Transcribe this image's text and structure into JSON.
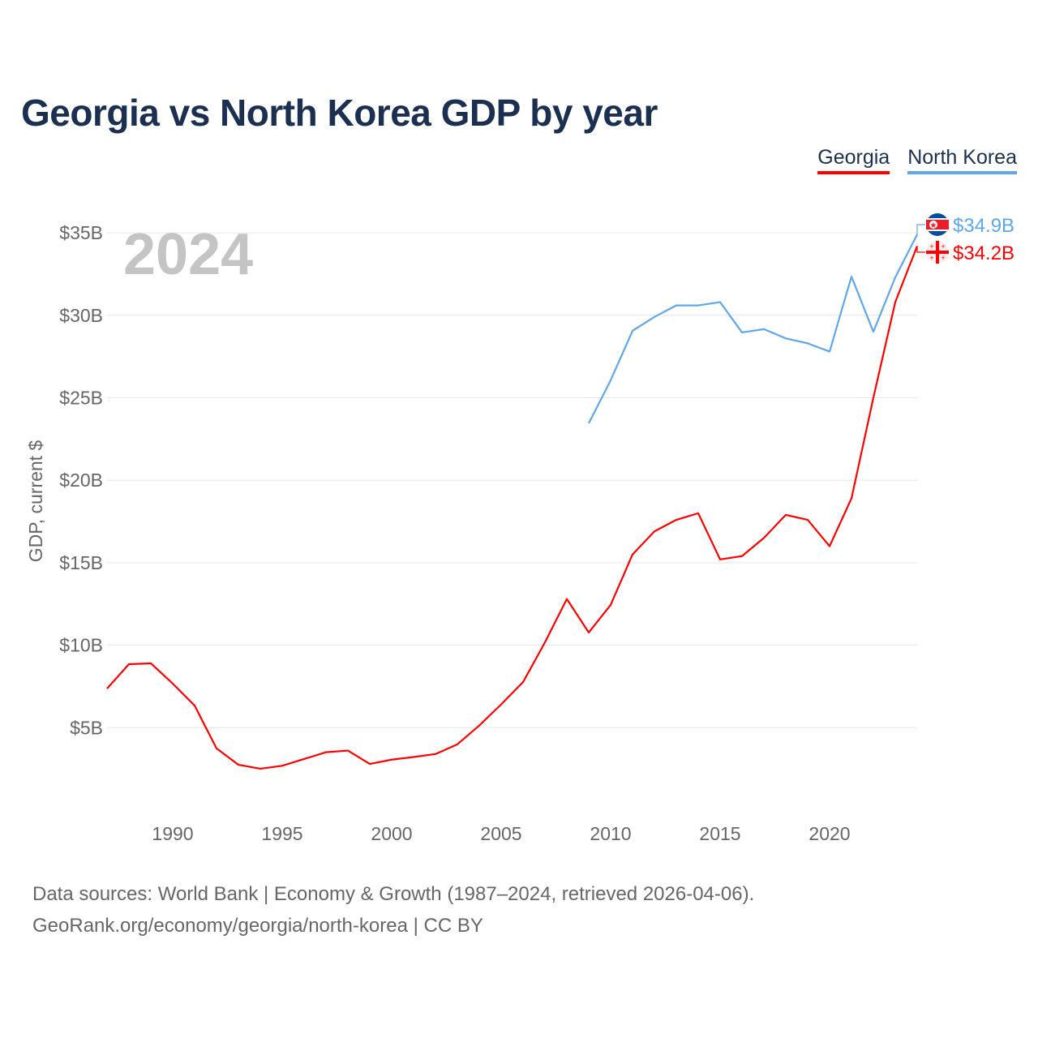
{
  "chart_data": {
    "type": "line",
    "title": "Georgia vs North Korea GDP by year",
    "ylabel": "GDP, current $",
    "xlabel": "",
    "year_overlay": "2024",
    "xlim": [
      1987,
      2024
    ],
    "ylim": [
      0,
      37
    ],
    "x_ticks": [
      1990,
      1995,
      2000,
      2005,
      2010,
      2015,
      2020
    ],
    "x_tick_labels": [
      "1990",
      "1995",
      "2000",
      "2005",
      "2010",
      "2015",
      "2020"
    ],
    "y_ticks": [
      5,
      10,
      15,
      20,
      25,
      30,
      35
    ],
    "y_tick_labels": [
      "$5B",
      "$10B",
      "$15B",
      "$20B",
      "$25B",
      "$30B",
      "$35B"
    ],
    "grid": true,
    "legend_position": "top-right",
    "series": [
      {
        "name": "Georgia",
        "color": "#ff0000",
        "end_label": "$34.2B",
        "x": [
          1987,
          1988,
          1989,
          1990,
          1991,
          1992,
          1993,
          1994,
          1995,
          1996,
          1997,
          1998,
          1999,
          2000,
          2001,
          2002,
          2003,
          2004,
          2005,
          2006,
          2007,
          2008,
          2009,
          2010,
          2011,
          2012,
          2013,
          2014,
          2015,
          2016,
          2017,
          2018,
          2019,
          2020,
          2021,
          2022,
          2023,
          2024
        ],
        "values": [
          7.37,
          8.85,
          8.9,
          7.67,
          6.34,
          3.74,
          2.75,
          2.51,
          2.69,
          3.1,
          3.51,
          3.61,
          2.8,
          3.06,
          3.22,
          3.4,
          3.99,
          5.13,
          6.41,
          7.76,
          10.17,
          12.8,
          10.77,
          12.44,
          15.5,
          16.9,
          17.6,
          18.0,
          15.2,
          15.4,
          16.5,
          17.9,
          17.6,
          16.0,
          18.9,
          25.0,
          30.8,
          34.2
        ]
      },
      {
        "name": "North Korea",
        "color": "#5ea7ea",
        "end_label": "$34.9B",
        "x": [
          2009,
          2010,
          2011,
          2012,
          2013,
          2014,
          2015,
          2016,
          2017,
          2018,
          2019,
          2020,
          2021,
          2022,
          2023,
          2024
        ],
        "values": [
          23.45,
          26.06,
          29.06,
          29.9,
          30.6,
          30.6,
          30.8,
          28.96,
          29.16,
          28.6,
          28.3,
          27.8,
          32.35,
          29.0,
          32.3,
          34.9
        ]
      }
    ]
  },
  "footer": {
    "line1": "Data sources: World Bank | Economy & Growth (1987–2024, retrieved 2026-04-06).",
    "line2": "GeoRank.org/economy/georgia/north-korea | CC BY"
  }
}
